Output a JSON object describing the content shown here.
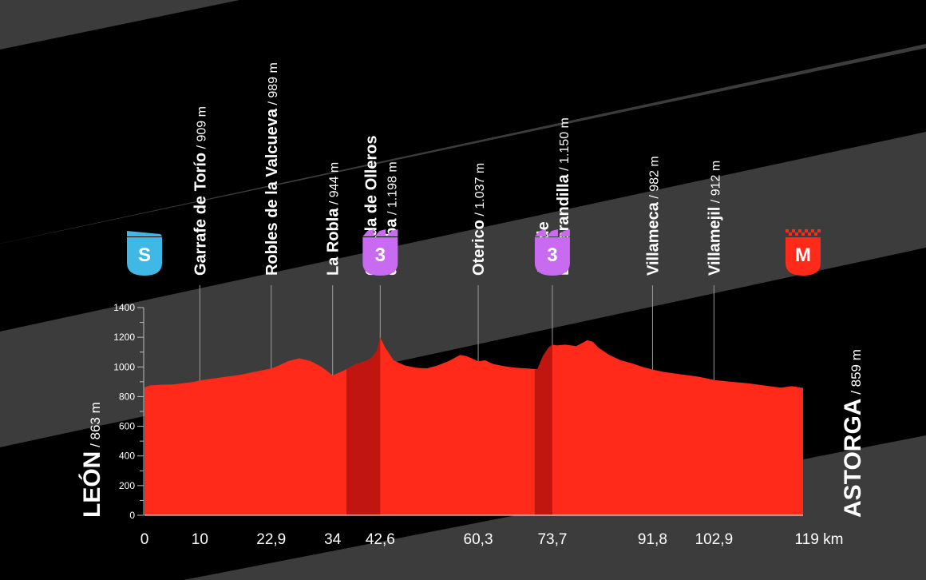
{
  "chart_data": {
    "type": "area",
    "title": "",
    "xlabel": "",
    "ylabel": "",
    "x_unit": "km",
    "xlim": [
      0,
      119
    ],
    "ylim": [
      0,
      1400
    ],
    "y_ticks": [
      0,
      200,
      400,
      600,
      800,
      1000,
      1200,
      1400
    ],
    "start": {
      "name": "LEÓN",
      "altitude": "863 m",
      "marker": "S"
    },
    "finish": {
      "name": "ASTORGA",
      "altitude": "859 m",
      "marker": "M"
    },
    "profile": {
      "x": [
        0,
        1,
        3,
        5,
        7,
        9,
        10,
        11,
        13,
        15,
        17,
        19,
        21,
        22.9,
        24,
        26,
        28,
        30,
        32,
        34,
        36,
        38,
        40,
        41,
        42,
        42.6,
        43.5,
        45,
        47,
        49,
        51,
        53,
        55,
        57,
        58,
        59,
        60.3,
        61.5,
        63,
        65,
        67,
        69,
        71,
        72,
        73,
        73.7,
        74.5,
        76,
        78,
        79,
        80,
        81,
        82,
        84,
        86,
        88,
        90,
        91.8,
        94,
        97,
        100,
        102.9,
        106,
        109,
        112,
        115,
        117,
        119
      ],
      "y": [
        863,
        875,
        880,
        882,
        890,
        900,
        909,
        915,
        925,
        935,
        945,
        960,
        975,
        989,
        1005,
        1040,
        1058,
        1040,
        1000,
        944,
        975,
        1015,
        1040,
        1060,
        1110,
        1198,
        1130,
        1045,
        1010,
        995,
        990,
        1010,
        1040,
        1080,
        1075,
        1060,
        1037,
        1045,
        1020,
        1005,
        995,
        990,
        985,
        1075,
        1130,
        1150,
        1145,
        1150,
        1140,
        1160,
        1180,
        1170,
        1130,
        1080,
        1045,
        1025,
        1000,
        982,
        965,
        950,
        935,
        912,
        900,
        890,
        875,
        860,
        870,
        859
      ]
    },
    "climbs": [
      {
        "from": 36.5,
        "to": 42.6
      },
      {
        "from": 70.5,
        "to": 73.7
      }
    ],
    "waypoints": [
      {
        "km": 0,
        "km_label": "0"
      },
      {
        "km": 10,
        "km_label": "10",
        "name": "Garrafe de Torío",
        "altitude": "909 m"
      },
      {
        "km": 22.9,
        "km_label": "22,9",
        "name": "Robles de la Valcueva",
        "altitude": "989 m"
      },
      {
        "km": 34,
        "km_label": "34",
        "name": "La Robla",
        "altitude": "944 m"
      },
      {
        "km": 42.6,
        "km_label": "42,6",
        "name": "Collada de Olleros",
        "name2": "de Alba",
        "altitude": "1.198 m",
        "badge": "3"
      },
      {
        "km": 60.3,
        "km_label": "60,3",
        "name": "Oterico",
        "altitude": "1.037 m"
      },
      {
        "km": 73.7,
        "km_label": "73,7",
        "name": "Alto de",
        "name2": "La Garandilla",
        "altitude": "1.150 m",
        "badge": "3"
      },
      {
        "km": 91.8,
        "km_label": "91,8",
        "name": "Villameca",
        "altitude": "982 m"
      },
      {
        "km": 102.9,
        "km_label": "102,9",
        "name": "Villamejil",
        "altitude": "912 m"
      },
      {
        "km": 119,
        "km_label": "119 km"
      }
    ]
  },
  "colors": {
    "background": "#000000",
    "band": "#3c3c3c",
    "profile": "#ff2a1a",
    "climb_shade": "#c0160f",
    "start_badge": "#3fb8e6",
    "climb_badge": "#c86bf0",
    "finish_badge": "#ff2a1a"
  }
}
